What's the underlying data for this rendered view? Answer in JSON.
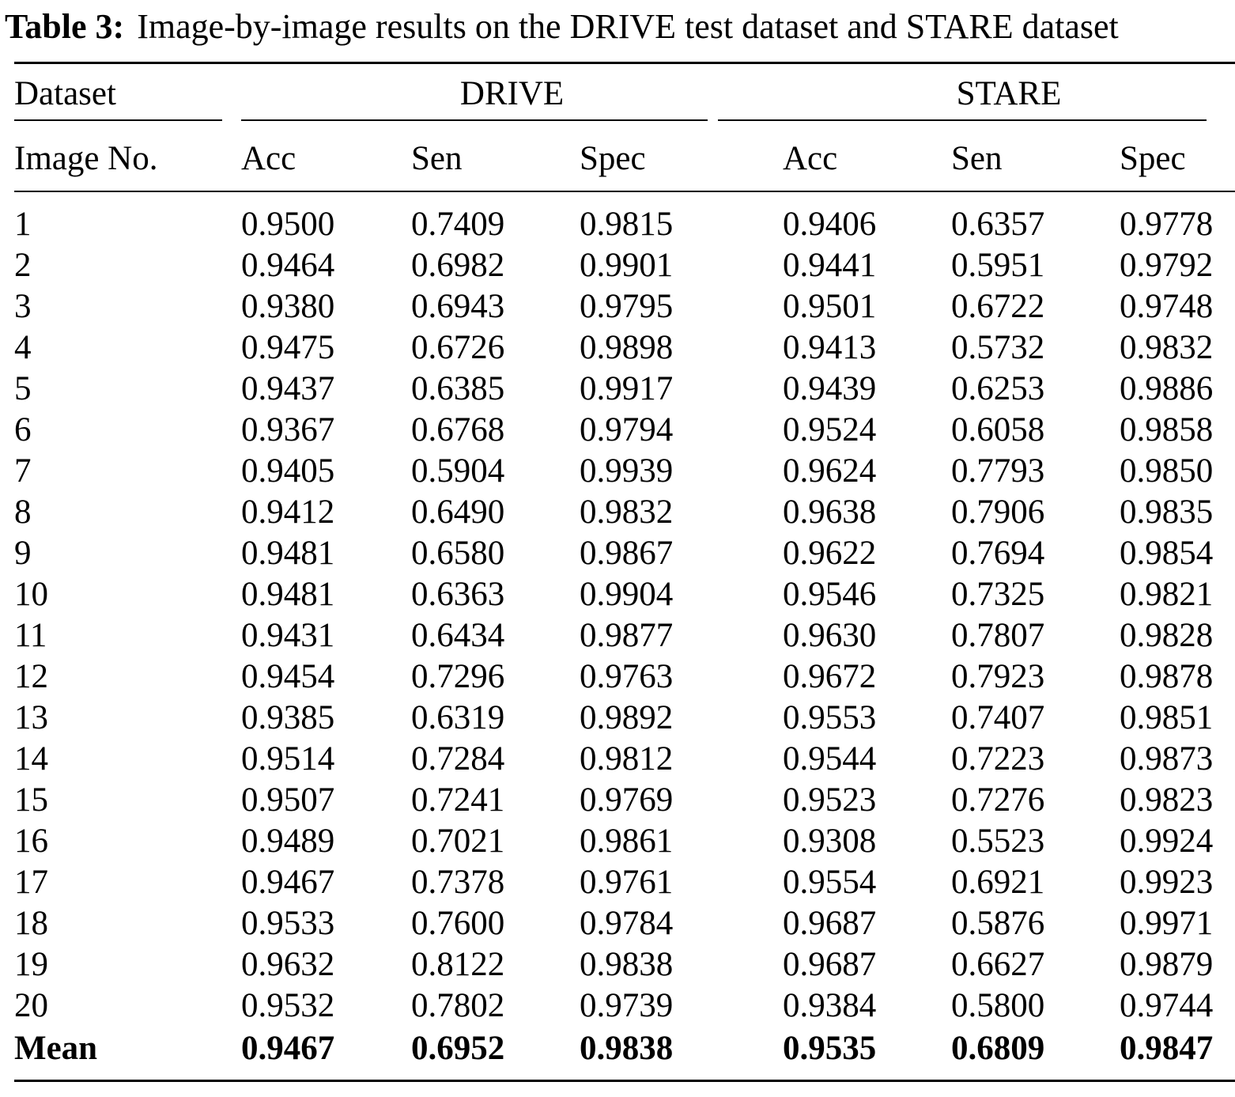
{
  "title": {
    "label": "Table 3:",
    "text": "Image-by-image results on the DRIVE test dataset and STARE dataset"
  },
  "table": {
    "col1_header_top": "Dataset",
    "col1_header_bottom": "Image No.",
    "groups": [
      {
        "name": "DRIVE"
      },
      {
        "name": "STARE"
      }
    ],
    "subheaders": [
      "Acc",
      "Sen",
      "Spec",
      "Acc",
      "Sen",
      "Spec"
    ],
    "rows": [
      {
        "image": "1",
        "drive": [
          "0.9500",
          "0.7409",
          "0.9815"
        ],
        "stare": [
          "0.9406",
          "0.6357",
          "0.9778"
        ]
      },
      {
        "image": "2",
        "drive": [
          "0.9464",
          "0.6982",
          "0.9901"
        ],
        "stare": [
          "0.9441",
          "0.5951",
          "0.9792"
        ]
      },
      {
        "image": "3",
        "drive": [
          "0.9380",
          "0.6943",
          "0.9795"
        ],
        "stare": [
          "0.9501",
          "0.6722",
          "0.9748"
        ]
      },
      {
        "image": "4",
        "drive": [
          "0.9475",
          "0.6726",
          "0.9898"
        ],
        "stare": [
          "0.9413",
          "0.5732",
          "0.9832"
        ]
      },
      {
        "image": "5",
        "drive": [
          "0.9437",
          "0.6385",
          "0.9917"
        ],
        "stare": [
          "0.9439",
          "0.6253",
          "0.9886"
        ]
      },
      {
        "image": "6",
        "drive": [
          "0.9367",
          "0.6768",
          "0.9794"
        ],
        "stare": [
          "0.9524",
          "0.6058",
          "0.9858"
        ]
      },
      {
        "image": "7",
        "drive": [
          "0.9405",
          "0.5904",
          "0.9939"
        ],
        "stare": [
          "0.9624",
          "0.7793",
          "0.9850"
        ]
      },
      {
        "image": "8",
        "drive": [
          "0.9412",
          "0.6490",
          "0.9832"
        ],
        "stare": [
          "0.9638",
          "0.7906",
          "0.9835"
        ]
      },
      {
        "image": "9",
        "drive": [
          "0.9481",
          "0.6580",
          "0.9867"
        ],
        "stare": [
          "0.9622",
          "0.7694",
          "0.9854"
        ]
      },
      {
        "image": "10",
        "drive": [
          "0.9481",
          "0.6363",
          "0.9904"
        ],
        "stare": [
          "0.9546",
          "0.7325",
          "0.9821"
        ]
      },
      {
        "image": "11",
        "drive": [
          "0.9431",
          "0.6434",
          "0.9877"
        ],
        "stare": [
          "0.9630",
          "0.7807",
          "0.9828"
        ]
      },
      {
        "image": "12",
        "drive": [
          "0.9454",
          "0.7296",
          "0.9763"
        ],
        "stare": [
          "0.9672",
          "0.7923",
          "0.9878"
        ]
      },
      {
        "image": "13",
        "drive": [
          "0.9385",
          "0.6319",
          "0.9892"
        ],
        "stare": [
          "0.9553",
          "0.7407",
          "0.9851"
        ]
      },
      {
        "image": "14",
        "drive": [
          "0.9514",
          "0.7284",
          "0.9812"
        ],
        "stare": [
          "0.9544",
          "0.7223",
          "0.9873"
        ]
      },
      {
        "image": "15",
        "drive": [
          "0.9507",
          "0.7241",
          "0.9769"
        ],
        "stare": [
          "0.9523",
          "0.7276",
          "0.9823"
        ]
      },
      {
        "image": "16",
        "drive": [
          "0.9489",
          "0.7021",
          "0.9861"
        ],
        "stare": [
          "0.9308",
          "0.5523",
          "0.9924"
        ]
      },
      {
        "image": "17",
        "drive": [
          "0.9467",
          "0.7378",
          "0.9761"
        ],
        "stare": [
          "0.9554",
          "0.6921",
          "0.9923"
        ]
      },
      {
        "image": "18",
        "drive": [
          "0.9533",
          "0.7600",
          "0.9784"
        ],
        "stare": [
          "0.9687",
          "0.5876",
          "0.9971"
        ]
      },
      {
        "image": "19",
        "drive": [
          "0.9632",
          "0.8122",
          "0.9838"
        ],
        "stare": [
          "0.9687",
          "0.6627",
          "0.9879"
        ]
      },
      {
        "image": "20",
        "drive": [
          "0.9532",
          "0.7802",
          "0.9739"
        ],
        "stare": [
          "0.9384",
          "0.5800",
          "0.9744"
        ]
      }
    ],
    "mean": {
      "label": "Mean",
      "drive": [
        "0.9467",
        "0.6952",
        "0.9838"
      ],
      "stare": [
        "0.9535",
        "0.6809",
        "0.9847"
      ]
    }
  }
}
